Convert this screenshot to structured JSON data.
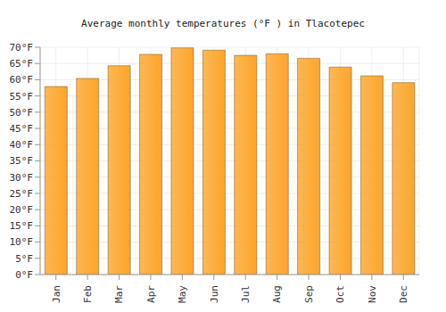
{
  "chart_data": {
    "type": "bar",
    "title": "Average monthly temperatures (°F ) in Tlacotepec",
    "categories": [
      "Jan",
      "Feb",
      "Mar",
      "Apr",
      "May",
      "Jun",
      "Jul",
      "Aug",
      "Sep",
      "Oct",
      "Nov",
      "Dec"
    ],
    "values": [
      57.9,
      60.4,
      64.3,
      67.8,
      69.8,
      69.1,
      67.5,
      68.0,
      66.6,
      63.9,
      61.2,
      59.1
    ],
    "color": "#fca52a",
    "ylim": [
      0,
      70
    ],
    "yticks": [
      {
        "value": 0,
        "label": "0°F"
      },
      {
        "value": 5,
        "label": "5°F"
      },
      {
        "value": 10,
        "label": "10°F"
      },
      {
        "value": 15,
        "label": "15°F"
      },
      {
        "value": 20,
        "label": "20°F"
      },
      {
        "value": 25,
        "label": "25°F"
      },
      {
        "value": 30,
        "label": "30°F"
      },
      {
        "value": 35,
        "label": "35°F"
      },
      {
        "value": 40,
        "label": "40°F"
      },
      {
        "value": 45,
        "label": "45°F"
      },
      {
        "value": 50,
        "label": "50°F"
      },
      {
        "value": 55,
        "label": "55°F"
      },
      {
        "value": 60,
        "label": "60°F"
      },
      {
        "value": 65,
        "label": "65°F"
      },
      {
        "value": 70,
        "label": "70°F"
      }
    ],
    "grid": true
  }
}
